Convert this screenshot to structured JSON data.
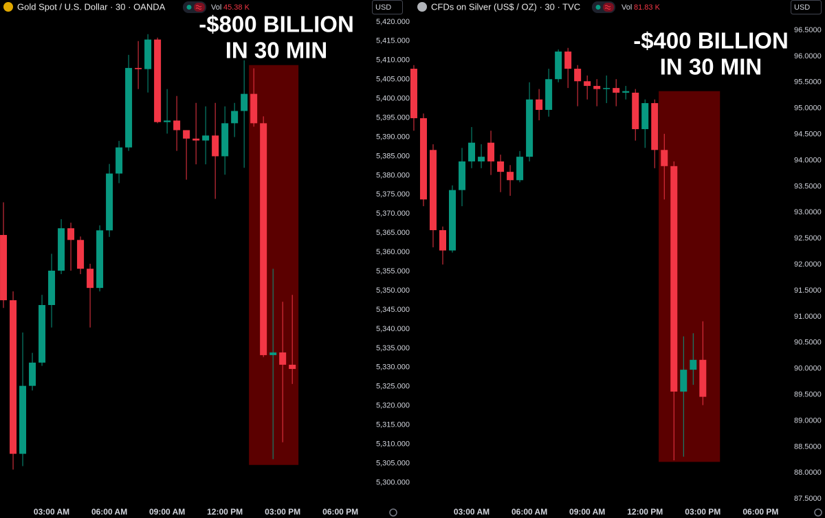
{
  "chart_data": [
    {
      "type": "candlestick",
      "title": "Gold Spot / U.S. Dollar · 30 · OANDA",
      "volume_label": "Vol",
      "volume": "45.38 K",
      "currency": "USD",
      "annotation": [
        "-$800 BILLION",
        "IN 30 MIN"
      ],
      "highlight": {
        "x": [
          13.25,
          15.82
        ],
        "y": [
          5304.6,
          5408.75
        ],
        "color": "#6b0000"
      },
      "up_color": "#089981",
      "down_color": "#f23645",
      "x": [
        0.5,
        1,
        1.5,
        2,
        2.5,
        3,
        3.5,
        4,
        4.5,
        5,
        5.5,
        6,
        6.5,
        7,
        7.5,
        8,
        8.5,
        9,
        9.5,
        10,
        10.5,
        11,
        11.5,
        12,
        12.5,
        13,
        13.5,
        14,
        14.5,
        15,
        15.5
      ],
      "open": [
        5364.5,
        5347.5,
        5307.5,
        5325.2,
        5331.25,
        5346.25,
        5355.2,
        5366.25,
        5363.2,
        5355.7,
        5350.7,
        5365.7,
        5380.5,
        5387.3,
        5408,
        5407.7,
        5415.4,
        5393.9,
        5394.3,
        5391.8,
        5389.6,
        5389.1,
        5390.4,
        5385,
        5393.6,
        5396.8,
        5401.25,
        5393.6,
        5333.2,
        5333.9,
        5330.7
      ],
      "high": [
        5373,
        5349.8,
        5339.1,
        5333.8,
        5348.9,
        5359.6,
        5368.6,
        5367.7,
        5364.1,
        5357,
        5367,
        5383,
        5389,
        5411.4,
        5415,
        5416.8,
        5415.9,
        5402.5,
        5400.7,
        5391.8,
        5398.9,
        5398,
        5398.9,
        5398,
        5398.9,
        5410,
        5407.9,
        5395.4,
        5355.7,
        5347.1,
        5348.9
      ],
      "low": [
        5345.5,
        5303.4,
        5304.3,
        5324,
        5330.4,
        5340.4,
        5354.3,
        5355.2,
        5354.3,
        5340.4,
        5349.8,
        5364,
        5378,
        5386.4,
        5402.5,
        5401.6,
        5393.6,
        5390.9,
        5386.4,
        5378.9,
        5382.9,
        5382.9,
        5373.9,
        5380.2,
        5390,
        5382,
        5392.7,
        5332.7,
        5306.1,
        5310.5,
        5325.7
      ],
      "close": [
        5347.5,
        5307.5,
        5325.2,
        5331.25,
        5346.25,
        5355.2,
        5366.25,
        5363.2,
        5355.7,
        5350.7,
        5365.7,
        5380.5,
        5387.3,
        5408,
        5407.7,
        5415.4,
        5393.9,
        5394.3,
        5391.8,
        5389.6,
        5389.1,
        5390.4,
        5385,
        5393.6,
        5396.8,
        5401.25,
        5393.6,
        5333.2,
        5333.9,
        5330.7,
        5329.6
      ],
      "xlim": [
        0.32,
        19.6
      ],
      "xticks": [
        {
          "value": 3,
          "label": "03:00 AM"
        },
        {
          "value": 6,
          "label": "06:00 AM"
        },
        {
          "value": 9,
          "label": "09:00 AM"
        },
        {
          "value": 12,
          "label": "12:00 PM"
        },
        {
          "value": 15,
          "label": "03:00 PM"
        },
        {
          "value": 18,
          "label": "06:00 PM"
        }
      ],
      "ylim": [
        5294,
        5425.7
      ],
      "yticks": [
        {
          "value": 5300,
          "label": "5,300.000"
        },
        {
          "value": 5305,
          "label": "5,305.000"
        },
        {
          "value": 5310,
          "label": "5,310.000"
        },
        {
          "value": 5315,
          "label": "5,315.000"
        },
        {
          "value": 5320,
          "label": "5,320.000"
        },
        {
          "value": 5325,
          "label": "5,325.000"
        },
        {
          "value": 5330,
          "label": "5,330.000"
        },
        {
          "value": 5335,
          "label": "5,335.000"
        },
        {
          "value": 5340,
          "label": "5,340.000"
        },
        {
          "value": 5345,
          "label": "5,345.000"
        },
        {
          "value": 5350,
          "label": "5,350.000"
        },
        {
          "value": 5355,
          "label": "5,355.000"
        },
        {
          "value": 5360,
          "label": "5,360.000"
        },
        {
          "value": 5365,
          "label": "5,365.000"
        },
        {
          "value": 5370,
          "label": "5,370.000"
        },
        {
          "value": 5375,
          "label": "5,375.000"
        },
        {
          "value": 5380,
          "label": "5,380.000"
        },
        {
          "value": 5385,
          "label": "5,385.000"
        },
        {
          "value": 5390,
          "label": "5,390.000"
        },
        {
          "value": 5395,
          "label": "5,395.000"
        },
        {
          "value": 5400,
          "label": "5,400.000"
        },
        {
          "value": 5405,
          "label": "5,405.000"
        },
        {
          "value": 5410,
          "label": "5,410.000"
        },
        {
          "value": 5415,
          "label": "5,415.000"
        },
        {
          "value": 5420,
          "label": "5,420.000"
        }
      ]
    },
    {
      "type": "candlestick",
      "title": "CFDs on Silver (US$ / OZ) · 30 · TVC",
      "volume_label": "Vol",
      "volume": "81.83 K",
      "currency": "USD",
      "annotation": [
        "-$400 BILLION",
        "IN 30 MIN"
      ],
      "highlight": {
        "x": [
          12.71,
          15.89
        ],
        "y": [
          88.21,
          95.33
        ],
        "color": "#6b0000"
      },
      "up_color": "#089981",
      "down_color": "#f23645",
      "x": [
        0,
        0.5,
        1,
        1.5,
        2,
        2.5,
        3,
        3.5,
        4,
        4.5,
        5,
        5.5,
        6,
        6.5,
        7,
        7.5,
        8,
        8.5,
        9,
        9.5,
        10,
        10.5,
        11,
        11.5,
        12,
        12.5,
        13,
        13.5,
        14,
        14.5,
        15
      ],
      "open": [
        95.76,
        94.81,
        94.2,
        92.66,
        92.27,
        93.43,
        93.98,
        93.98,
        94.34,
        93.98,
        93.78,
        93.62,
        94.07,
        95.17,
        94.97,
        95.56,
        96.09,
        95.76,
        95.52,
        95.43,
        95.37,
        95.39,
        95.3,
        95.3,
        94.6,
        95.1,
        94.2,
        93.89,
        89.56,
        89.98,
        90.17
      ],
      "high": [
        95.83,
        94.9,
        94.31,
        92.73,
        93.52,
        94.24,
        94.64,
        94.31,
        94.57,
        94.11,
        93.91,
        94.18,
        95.5,
        95.37,
        95.76,
        96.13,
        96.16,
        95.83,
        95.63,
        95.56,
        95.63,
        95.56,
        95.43,
        95.37,
        95.17,
        95.17,
        94.51,
        93.98,
        90.62,
        90.68,
        90.91
      ],
      "low": [
        94.57,
        93.12,
        92.33,
        92.0,
        92.23,
        93.12,
        93.85,
        93.85,
        93.72,
        93.39,
        93.32,
        93.58,
        93.98,
        94.77,
        94.84,
        95.5,
        95.39,
        95.04,
        95.17,
        95.04,
        95.1,
        95.04,
        95.17,
        94.38,
        94.24,
        93.85,
        93.25,
        88.24,
        88.31,
        89.69,
        89.3
      ],
      "close": [
        94.81,
        93.25,
        92.66,
        92.27,
        93.43,
        93.98,
        94.34,
        94.07,
        93.98,
        93.78,
        93.62,
        94.07,
        95.17,
        94.97,
        95.56,
        96.09,
        95.76,
        95.52,
        95.43,
        95.37,
        95.39,
        95.3,
        95.33,
        94.6,
        95.1,
        94.2,
        93.89,
        89.56,
        89.98,
        90.17,
        89.46
      ],
      "xlim": [
        -0.07,
        19.2
      ],
      "xticks": [
        {
          "value": 3,
          "label": "03:00 AM"
        },
        {
          "value": 6,
          "label": "06:00 AM"
        },
        {
          "value": 9,
          "label": "09:00 AM"
        },
        {
          "value": 12,
          "label": "12:00 PM"
        },
        {
          "value": 15,
          "label": "03:00 PM"
        },
        {
          "value": 18,
          "label": "06:00 PM"
        }
      ],
      "ylim": [
        87.37,
        97.08
      ],
      "yticks": [
        {
          "value": 87.5,
          "label": "87.5000"
        },
        {
          "value": 88,
          "label": "88.0000"
        },
        {
          "value": 88.5,
          "label": "88.5000"
        },
        {
          "value": 89,
          "label": "89.0000"
        },
        {
          "value": 89.5,
          "label": "89.5000"
        },
        {
          "value": 90,
          "label": "90.0000"
        },
        {
          "value": 90.5,
          "label": "90.5000"
        },
        {
          "value": 91,
          "label": "91.0000"
        },
        {
          "value": 91.5,
          "label": "91.5000"
        },
        {
          "value": 92,
          "label": "92.0000"
        },
        {
          "value": 92.5,
          "label": "92.5000"
        },
        {
          "value": 93,
          "label": "93.0000"
        },
        {
          "value": 93.5,
          "label": "93.5000"
        },
        {
          "value": 94,
          "label": "94.0000"
        },
        {
          "value": 94.5,
          "label": "94.5000"
        },
        {
          "value": 95,
          "label": "95.0000"
        },
        {
          "value": 95.5,
          "label": "95.5000"
        },
        {
          "value": 96,
          "label": "96.0000"
        },
        {
          "value": 96.5,
          "label": "96.5000"
        }
      ]
    }
  ]
}
